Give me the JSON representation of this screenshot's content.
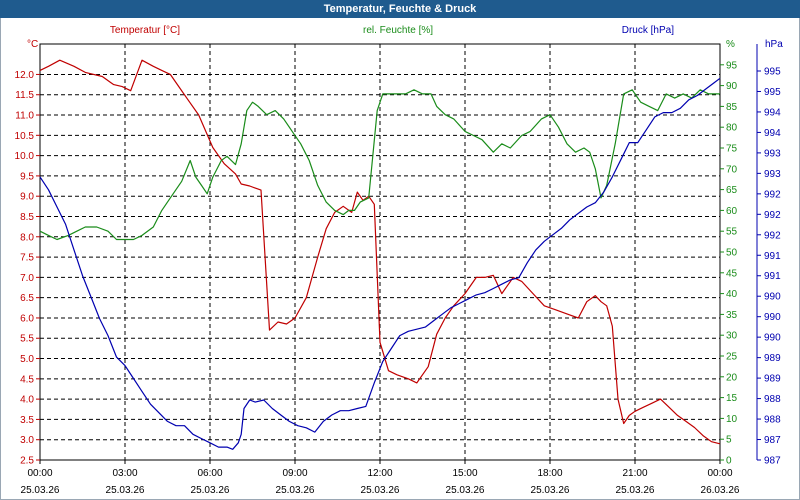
{
  "chart_data": {
    "type": "line",
    "title": "Temperatur, Feuchte & Druck",
    "x_ticks": [
      {
        "time": "00:00",
        "date": "25.03.26"
      },
      {
        "time": "03:00",
        "date": "25.03.26"
      },
      {
        "time": "06:00",
        "date": "25.03.26"
      },
      {
        "time": "09:00",
        "date": "25.03.26"
      },
      {
        "time": "12:00",
        "date": "25.03.26"
      },
      {
        "time": "15:00",
        "date": "25.03.26"
      },
      {
        "time": "18:00",
        "date": "25.03.26"
      },
      {
        "time": "21:00",
        "date": "25.03.26"
      },
      {
        "time": "00:00",
        "date": "26.03.26"
      }
    ],
    "xlim": [
      0,
      24
    ],
    "axes": {
      "temperature": {
        "label": "Temperatur [°C]",
        "unit": "°C",
        "ylim": [
          2.5,
          12.75
        ],
        "color": "#c00000",
        "ticks": [
          "2.5",
          "3.0",
          "3.5",
          "4.0",
          "4.5",
          "5.0",
          "5.5",
          "6.0",
          "6.5",
          "7.0",
          "7.5",
          "8.0",
          "8.5",
          "9.0",
          "9.5",
          "10.0",
          "10.5",
          "11.0",
          "11.5",
          "12.0"
        ]
      },
      "humidity": {
        "label": "rel. Feuchte [%]",
        "unit": "%",
        "ylim": [
          0,
          100
        ],
        "color": "#1a8c1a",
        "ticks": [
          "0",
          "5",
          "10",
          "15",
          "20",
          "25",
          "30",
          "35",
          "40",
          "45",
          "50",
          "55",
          "60",
          "65",
          "70",
          "75",
          "80",
          "85",
          "90",
          "95"
        ]
      },
      "pressure": {
        "label": "Druck [hPa]",
        "unit": "hPa",
        "ylim": [
          986.7,
          996.4
        ],
        "color": "#0000b0",
        "ticks": [
          "987",
          "987",
          "988",
          "988",
          "989",
          "989",
          "990",
          "990",
          "990",
          "991",
          "991",
          "992",
          "992",
          "992",
          "993",
          "993",
          "994",
          "994",
          "995",
          "995"
        ]
      }
    },
    "series": [
      {
        "name": "Temperatur",
        "axis": "temperature",
        "color": "#c00000",
        "x": [
          0,
          0.3,
          0.7,
          1.2,
          1.6,
          2.2,
          2.5,
          2.6,
          2.9,
          3.2,
          3.6,
          4.0,
          4.3,
          4.6,
          4.9,
          5.2,
          5.6,
          6.1,
          6.5,
          6.9,
          7.1,
          7.4,
          7.6,
          7.8,
          8.1,
          8.4,
          8.7,
          9.0,
          9.4,
          9.8,
          10.1,
          10.4,
          10.7,
          11.0,
          11.2,
          11.4,
          11.6,
          11.8,
          12.0,
          12.3,
          12.6,
          13.0,
          13.3,
          13.7,
          14.0,
          14.3,
          14.6,
          15.0,
          15.4,
          15.7,
          16.0,
          16.3,
          16.7,
          17.0,
          17.4,
          17.8,
          18.2,
          18.6,
          19.0,
          19.3,
          19.6,
          19.8,
          20.0,
          20.2,
          20.4,
          20.6,
          20.8,
          21.0,
          21.3,
          21.6,
          21.9,
          22.2,
          22.5,
          22.8,
          23.1,
          23.4,
          23.7,
          24.0
        ],
        "values": [
          12.1,
          12.2,
          12.35,
          12.2,
          12.05,
          11.95,
          11.8,
          11.75,
          11.7,
          11.6,
          12.35,
          12.2,
          12.1,
          12.0,
          11.7,
          11.4,
          11.0,
          10.2,
          9.8,
          9.55,
          9.3,
          9.25,
          9.2,
          9.15,
          5.7,
          5.9,
          5.85,
          6.0,
          6.5,
          7.5,
          8.2,
          8.6,
          8.75,
          8.6,
          9.1,
          8.9,
          9.0,
          8.8,
          5.4,
          4.7,
          4.6,
          4.5,
          4.4,
          4.8,
          5.6,
          6.0,
          6.3,
          6.6,
          7.0,
          7.0,
          7.05,
          6.6,
          7.0,
          6.9,
          6.6,
          6.3,
          6.2,
          6.1,
          6.0,
          6.4,
          6.55,
          6.4,
          6.3,
          5.8,
          4.0,
          3.4,
          3.6,
          3.7,
          3.8,
          3.9,
          4.0,
          3.8,
          3.6,
          3.45,
          3.3,
          3.1,
          2.95,
          2.9
        ]
      },
      {
        "name": "rel. Feuchte",
        "axis": "humidity",
        "color": "#1a8c1a",
        "x": [
          0,
          0.3,
          0.6,
          1.0,
          1.3,
          1.6,
          2.0,
          2.4,
          2.7,
          3.0,
          3.3,
          3.6,
          4.0,
          4.3,
          4.6,
          5.0,
          5.3,
          5.5,
          5.7,
          5.9,
          6.1,
          6.4,
          6.6,
          6.9,
          7.1,
          7.3,
          7.5,
          7.7,
          8.0,
          8.3,
          8.6,
          8.9,
          9.2,
          9.5,
          9.8,
          10.1,
          10.4,
          10.7,
          10.9,
          11.1,
          11.3,
          11.6,
          11.9,
          12.1,
          12.3,
          12.6,
          12.9,
          13.2,
          13.5,
          13.8,
          14.0,
          14.3,
          14.6,
          15.0,
          15.3,
          15.6,
          16.0,
          16.3,
          16.6,
          17.0,
          17.3,
          17.7,
          18.0,
          18.3,
          18.6,
          18.9,
          19.2,
          19.4,
          19.6,
          19.8,
          20.0,
          20.3,
          20.6,
          20.9,
          21.2,
          21.5,
          21.8,
          22.1,
          22.4,
          22.7,
          23.0,
          23.3,
          23.6,
          24.0
        ],
        "values": [
          55,
          54,
          53,
          54,
          55,
          56,
          56,
          55,
          53,
          53,
          53,
          54,
          56,
          60,
          63,
          67,
          72,
          68,
          66,
          64,
          68,
          72,
          73,
          71,
          76,
          84,
          86,
          85,
          83,
          84,
          82,
          79,
          76,
          72,
          66,
          62,
          60,
          59,
          60,
          60,
          62,
          63,
          84,
          88,
          88,
          88,
          88,
          89,
          88,
          88,
          85,
          83,
          82,
          79,
          78,
          77,
          74,
          76,
          75,
          78,
          79,
          82,
          83,
          80,
          76,
          74,
          75,
          74,
          70,
          63,
          66,
          76,
          88,
          89,
          86,
          85,
          84,
          88,
          87,
          88,
          87,
          89,
          88,
          88
        ]
      },
      {
        "name": "Druck",
        "axis": "pressure",
        "color": "#0000b0",
        "x": [
          0,
          0.3,
          0.6,
          0.9,
          1.2,
          1.5,
          1.8,
          2.1,
          2.4,
          2.7,
          3.0,
          3.3,
          3.6,
          3.9,
          4.2,
          4.5,
          4.8,
          5.1,
          5.4,
          5.7,
          6.0,
          6.3,
          6.6,
          6.8,
          7.0,
          7.1,
          7.2,
          7.4,
          7.6,
          7.9,
          8.2,
          8.5,
          8.8,
          9.1,
          9.4,
          9.7,
          10.0,
          10.3,
          10.6,
          10.9,
          11.2,
          11.5,
          11.8,
          12.1,
          12.4,
          12.7,
          13.0,
          13.3,
          13.6,
          13.9,
          14.2,
          14.5,
          14.8,
          15.1,
          15.4,
          15.7,
          16.0,
          16.3,
          16.6,
          16.9,
          17.2,
          17.5,
          17.8,
          18.1,
          18.4,
          18.7,
          19.0,
          19.3,
          19.6,
          19.9,
          20.2,
          20.5,
          20.8,
          21.1,
          21.4,
          21.7,
          22.0,
          22.3,
          22.6,
          22.9,
          23.2,
          23.5,
          23.8,
          24.0
        ],
        "values": [
          993.3,
          993.0,
          992.6,
          992.2,
          991.6,
          991.0,
          990.5,
          990.0,
          989.6,
          989.1,
          988.9,
          988.6,
          988.3,
          988.0,
          987.8,
          987.6,
          987.5,
          987.5,
          987.3,
          987.2,
          987.1,
          987.0,
          987.0,
          986.95,
          987.1,
          987.3,
          987.9,
          988.1,
          988.05,
          988.1,
          987.9,
          987.75,
          987.6,
          987.5,
          987.45,
          987.35,
          987.6,
          987.75,
          987.85,
          987.85,
          987.9,
          987.95,
          988.5,
          989.0,
          989.3,
          989.6,
          989.7,
          989.75,
          989.8,
          989.95,
          990.1,
          990.25,
          990.35,
          990.45,
          990.55,
          990.6,
          990.7,
          990.8,
          990.9,
          990.95,
          991.3,
          991.6,
          991.8,
          991.95,
          992.1,
          992.3,
          992.45,
          992.6,
          992.7,
          992.95,
          993.3,
          993.7,
          994.1,
          994.1,
          994.4,
          994.7,
          994.8,
          994.8,
          994.9,
          995.1,
          995.2,
          995.35,
          995.5,
          995.6
        ]
      }
    ]
  }
}
